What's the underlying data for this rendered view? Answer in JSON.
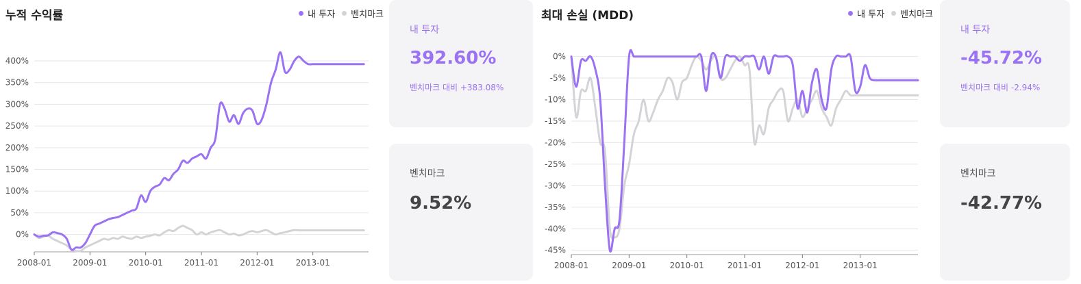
{
  "colors": {
    "mine": "#9b72f2",
    "benchmark": "#d4d4d8",
    "grid": "#e6e6e6",
    "axis": "#555555"
  },
  "legend": {
    "mine": "내 투자",
    "benchmark": "벤치마크"
  },
  "return_card": {
    "mine": {
      "label": "내 투자",
      "value": "392.60%",
      "sub": "벤치마크 대비 +383.08%"
    },
    "benchmark": {
      "label": "벤치마크",
      "value": "9.52%"
    }
  },
  "mdd_card": {
    "mine": {
      "label": "내 투자",
      "value": "-45.72%",
      "sub": "벤치마크 대비 -2.94%"
    },
    "benchmark": {
      "label": "벤치마크",
      "value": "-42.77%"
    }
  },
  "chart_data": [
    {
      "type": "line",
      "title": "누적 수익률",
      "x_ticks": [
        "2008-01",
        "2009-01",
        "2010-01",
        "2011-01",
        "2012-01",
        "2013-01"
      ],
      "y_ticks": [
        "0%",
        "50%",
        "100%",
        "150%",
        "200%",
        "250%",
        "300%",
        "350%",
        "400%"
      ],
      "ylim": [
        -40,
        430
      ],
      "xlim": [
        0,
        72
      ],
      "grid": true,
      "legend_position": "top-right",
      "series": [
        {
          "name": "내 투자",
          "key": "mine",
          "x": [
            0,
            1,
            2,
            3,
            4,
            5,
            6,
            7,
            8,
            9,
            10,
            11,
            12,
            13,
            14,
            15,
            16,
            17,
            18,
            19,
            20,
            21,
            22,
            23,
            24,
            25,
            26,
            27,
            28,
            29,
            30,
            31,
            32,
            33,
            34,
            35,
            36,
            37,
            38,
            39,
            40,
            41,
            42,
            43,
            44,
            45,
            46,
            47,
            48,
            49,
            50,
            51,
            52,
            53,
            54,
            55,
            56,
            57,
            58,
            59,
            60,
            61,
            62,
            63,
            64,
            65,
            66,
            67,
            68,
            69,
            70,
            71
          ],
          "values": [
            0,
            -5,
            -3,
            -2,
            5,
            3,
            0,
            -10,
            -35,
            -30,
            -30,
            -20,
            0,
            20,
            25,
            30,
            35,
            38,
            40,
            45,
            50,
            55,
            60,
            90,
            75,
            100,
            110,
            115,
            130,
            125,
            140,
            150,
            170,
            165,
            175,
            180,
            185,
            175,
            200,
            220,
            300,
            290,
            260,
            275,
            255,
            280,
            290,
            285,
            255,
            265,
            300,
            350,
            380,
            420,
            375,
            380,
            400,
            410,
            400,
            392.6,
            392.6,
            392.6,
            392.6,
            392.6,
            392.6,
            392.6,
            392.6,
            392.6,
            392.6,
            392.6,
            392.6,
            392.6
          ]
        },
        {
          "name": "벤치마크",
          "key": "benchmark",
          "x": [
            0,
            1,
            2,
            3,
            4,
            5,
            6,
            7,
            8,
            9,
            10,
            11,
            12,
            13,
            14,
            15,
            16,
            17,
            18,
            19,
            20,
            21,
            22,
            23,
            24,
            25,
            26,
            27,
            28,
            29,
            30,
            31,
            32,
            33,
            34,
            35,
            36,
            37,
            38,
            39,
            40,
            41,
            42,
            43,
            44,
            45,
            46,
            47,
            48,
            49,
            50,
            51,
            52,
            53,
            54,
            55,
            56,
            57,
            58,
            59,
            60,
            61,
            62,
            63,
            64,
            65,
            66,
            67,
            68,
            69,
            70,
            71
          ],
          "values": [
            0,
            -8,
            -5,
            -3,
            -10,
            -15,
            -20,
            -25,
            -35,
            -38,
            -38,
            -30,
            -25,
            -20,
            -15,
            -10,
            -12,
            -8,
            -10,
            -5,
            -8,
            -10,
            -5,
            -8,
            -5,
            -3,
            0,
            -2,
            5,
            10,
            8,
            15,
            20,
            15,
            10,
            0,
            5,
            0,
            5,
            8,
            10,
            5,
            0,
            2,
            -2,
            0,
            5,
            8,
            5,
            8,
            10,
            5,
            0,
            3,
            5,
            8,
            10,
            9.5,
            9.5,
            9.5,
            9.5,
            9.5,
            9.5,
            9.5,
            9.5,
            9.5,
            9.5,
            9.5,
            9.5,
            9.5,
            9.5,
            9.52
          ]
        }
      ]
    },
    {
      "type": "line",
      "title": "최대 손실 (MDD)",
      "x_ticks": [
        "2008-01",
        "2009-01",
        "2010-01",
        "2011-01",
        "2012-01",
        "2013-01"
      ],
      "y_ticks": [
        "0%",
        "-5%",
        "-10%",
        "-15%",
        "-20%",
        "-25%",
        "-30%",
        "-35%",
        "-40%",
        "-45%"
      ],
      "ylim": [
        -46,
        2
      ],
      "xlim": [
        0,
        72
      ],
      "grid": true,
      "legend_position": "top-right",
      "series": [
        {
          "name": "내 투자",
          "key": "mine",
          "x": [
            0,
            1,
            2,
            3,
            4,
            5,
            6,
            7,
            8,
            9,
            10,
            11,
            12,
            13,
            14,
            15,
            16,
            17,
            18,
            19,
            20,
            21,
            22,
            23,
            24,
            25,
            26,
            27,
            28,
            29,
            30,
            31,
            32,
            33,
            34,
            35,
            36,
            37,
            38,
            39,
            40,
            41,
            42,
            43,
            44,
            45,
            46,
            47,
            48,
            49,
            50,
            51,
            52,
            53,
            54,
            55,
            56,
            57,
            58,
            59,
            60,
            61,
            62,
            63,
            64,
            65,
            66,
            67,
            68,
            69,
            70,
            71,
            72
          ],
          "values": [
            0,
            -7,
            -1,
            -1,
            0,
            -3,
            -10,
            -30,
            -45,
            -40,
            -38,
            -20,
            0,
            0,
            0,
            0,
            0,
            0,
            0,
            0,
            0,
            0,
            0,
            0,
            0,
            0,
            0,
            0,
            -8,
            0,
            0,
            -5,
            0,
            0,
            0,
            -1,
            0,
            0,
            0,
            -3,
            0,
            -4,
            0,
            0,
            0,
            0,
            -2,
            -12,
            -8,
            -13,
            -6,
            -3,
            -10,
            -12,
            -3,
            0,
            0,
            0,
            0,
            -8,
            -7,
            -2,
            -5,
            -5.5,
            -5.5,
            -5.5,
            -5.5,
            -5.5,
            -5.5,
            -5.5,
            -5.5,
            -5.5,
            -5.5
          ]
        },
        {
          "name": "벤치마크",
          "key": "benchmark",
          "x": [
            0,
            1,
            2,
            3,
            4,
            5,
            6,
            7,
            8,
            9,
            10,
            11,
            12,
            13,
            14,
            15,
            16,
            17,
            18,
            19,
            20,
            21,
            22,
            23,
            24,
            25,
            26,
            27,
            28,
            29,
            30,
            31,
            32,
            33,
            34,
            35,
            36,
            37,
            38,
            39,
            40,
            41,
            42,
            43,
            44,
            45,
            46,
            47,
            48,
            49,
            50,
            51,
            52,
            53,
            54,
            55,
            56,
            57,
            58,
            59,
            60,
            61,
            62,
            63,
            64,
            65,
            66,
            67,
            68,
            69,
            70,
            71,
            72
          ],
          "values": [
            0,
            -14,
            -8,
            -8,
            -5,
            -12,
            -20,
            -22,
            -40,
            -42,
            -40,
            -30,
            -25,
            -18,
            -15,
            -10,
            -15,
            -13,
            -10,
            -8,
            -5,
            -6,
            -10,
            -6,
            -5,
            -2,
            0,
            -1,
            -3,
            -1,
            0,
            -5,
            -5,
            -3,
            -1,
            0,
            -2,
            -3,
            -20,
            -16,
            -18,
            -12,
            -10,
            -8,
            -8,
            -15,
            -12,
            -10,
            -14,
            -12,
            -10,
            -8,
            -12,
            -14,
            -16,
            -12,
            -10,
            -8,
            -9,
            -9,
            -9,
            -9,
            -9,
            -9,
            -9,
            -9,
            -9,
            -9,
            -9,
            -9,
            -9,
            -9,
            -9
          ]
        }
      ]
    }
  ]
}
